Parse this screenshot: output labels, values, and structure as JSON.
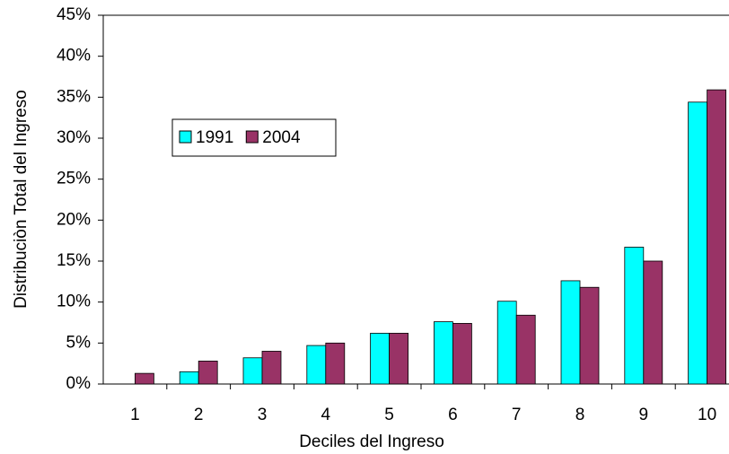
{
  "chart_data": {
    "type": "bar",
    "x_label": "Deciles del Ingreso",
    "y_label": "Distribuciòn Total del Ingreso",
    "categories": [
      "1",
      "2",
      "3",
      "4",
      "5",
      "6",
      "7",
      "8",
      "9",
      "10"
    ],
    "series": [
      {
        "name": "1991",
        "color": "#00ffff",
        "values": [
          0,
          1.5,
          3.2,
          4.7,
          6.2,
          7.6,
          10.1,
          12.6,
          16.7,
          34.4
        ]
      },
      {
        "name": "2004",
        "color": "#993366",
        "values": [
          1.3,
          2.8,
          4.0,
          5.0,
          6.2,
          7.4,
          8.4,
          11.8,
          15.0,
          35.9
        ]
      }
    ],
    "ylim": [
      0,
      45
    ],
    "yticks": [
      {
        "value": 0,
        "label": "0%"
      },
      {
        "value": 5,
        "label": "5%"
      },
      {
        "value": 10,
        "label": "10%"
      },
      {
        "value": 15,
        "label": "15%"
      },
      {
        "value": 20,
        "label": "20%"
      },
      {
        "value": 25,
        "label": "25%"
      },
      {
        "value": 30,
        "label": "30%"
      },
      {
        "value": 35,
        "label": "35%"
      },
      {
        "value": 40,
        "label": "40%"
      },
      {
        "value": 45,
        "label": "45%"
      }
    ],
    "grid": false,
    "legend": "upper-left"
  }
}
